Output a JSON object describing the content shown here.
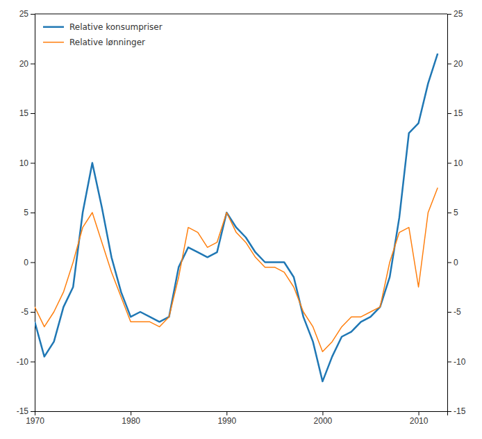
{
  "chart_data": {
    "type": "line",
    "x": [
      1970,
      1971,
      1972,
      1973,
      1974,
      1975,
      1976,
      1977,
      1978,
      1979,
      1980,
      1981,
      1982,
      1983,
      1984,
      1985,
      1986,
      1987,
      1988,
      1989,
      1990,
      1991,
      1992,
      1993,
      1994,
      1995,
      1996,
      1997,
      1998,
      1999,
      2000,
      2001,
      2002,
      2003,
      2004,
      2005,
      2006,
      2007,
      2008,
      2009,
      2010,
      2011,
      2012
    ],
    "series": [
      {
        "name": "Relative konsumpriser",
        "values": [
          -6.0,
          -9.5,
          -8.0,
          -4.5,
          -2.5,
          5.0,
          10.0,
          5.5,
          0.5,
          -3.0,
          -5.5,
          -5.0,
          -5.5,
          -6.0,
          -5.5,
          -0.5,
          1.5,
          1.0,
          0.5,
          1.0,
          5.0,
          3.5,
          2.5,
          1.0,
          0.0,
          0.0,
          0.0,
          -1.5,
          -5.5,
          -8.0,
          -12.0,
          -9.5,
          -7.5,
          -7.0,
          -6.0,
          -5.5,
          -4.5,
          -1.5,
          4.5,
          13.0,
          14.0,
          18.0,
          21.0
        ]
      },
      {
        "name": "Relative lønninger",
        "values": [
          -4.5,
          -6.5,
          -5.0,
          -3.0,
          0.0,
          3.5,
          5.0,
          2.0,
          -1.0,
          -3.5,
          -6.0,
          -6.0,
          -6.0,
          -6.5,
          -5.5,
          -1.5,
          3.5,
          3.0,
          1.5,
          2.0,
          5.0,
          3.0,
          2.0,
          0.5,
          -0.5,
          -0.5,
          -1.0,
          -2.5,
          -5.0,
          -6.5,
          -9.0,
          -8.0,
          -6.5,
          -5.5,
          -5.5,
          -5.0,
          -4.5,
          0.0,
          3.0,
          3.5,
          -2.5,
          5.0,
          7.5
        ]
      }
    ],
    "xlim": [
      1970,
      2013
    ],
    "xticks": [
      1970,
      1980,
      1990,
      2000,
      2010
    ],
    "ylim": [
      -15,
      25
    ],
    "yticks": [
      -15,
      -10,
      -5,
      0,
      5,
      10,
      15,
      20,
      25
    ],
    "y2lim": [
      -15,
      25
    ],
    "y2ticks": [
      -15,
      -10,
      -5,
      0,
      5,
      10,
      15,
      20,
      25
    ],
    "grid": false,
    "legend": "upper left"
  }
}
